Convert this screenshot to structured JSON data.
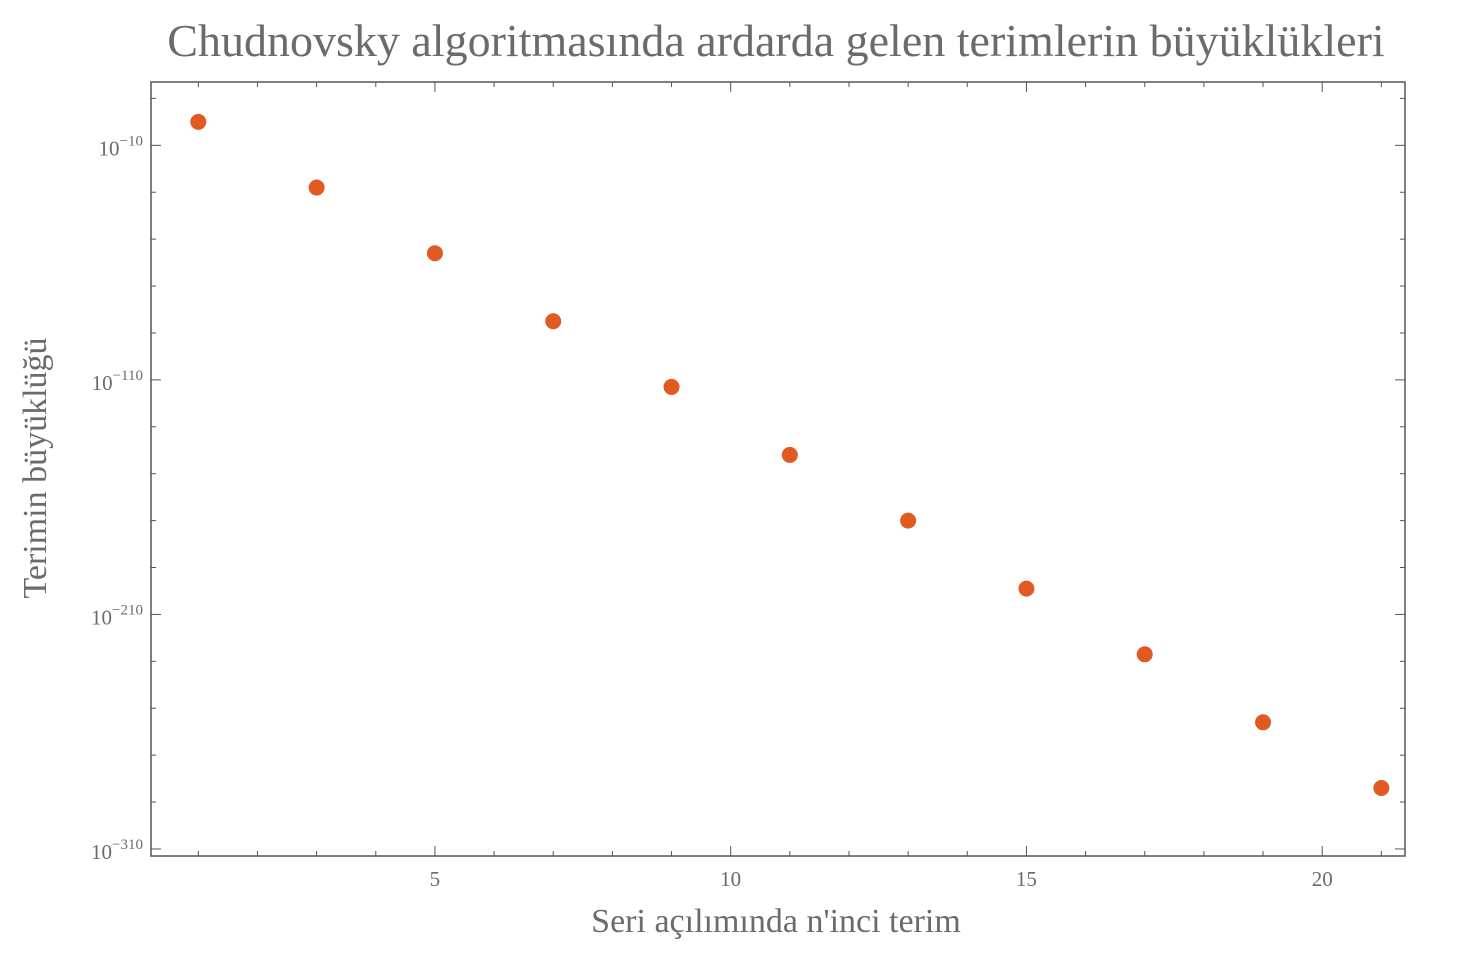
{
  "chart_data": {
    "type": "scatter",
    "title": "Chudnovsky algoritmasında ardarda gelen terimlerin büyüklükleri",
    "xlabel": "Seri açılımında n'inci terim",
    "ylabel": "Terimin büyüklüğü",
    "y_scale": "log10",
    "xlim": [
      0.2,
      21.4
    ],
    "ylim_exponent": [
      -313,
      17
    ],
    "x_ticks": [
      {
        "value": 5,
        "label": "5"
      },
      {
        "value": 10,
        "label": "10"
      },
      {
        "value": 15,
        "label": "15"
      },
      {
        "value": 20,
        "label": "20"
      }
    ],
    "y_ticks": [
      {
        "exponent": -10,
        "base": "10",
        "sup": "−10"
      },
      {
        "exponent": -110,
        "base": "10",
        "sup": "−110"
      },
      {
        "exponent": -210,
        "base": "10",
        "sup": "−210"
      },
      {
        "exponent": -310,
        "base": "10",
        "sup": "−310"
      }
    ],
    "grid": false,
    "series": [
      {
        "color": "#e05a22",
        "points": [
          {
            "x": 1,
            "log10_y": 0
          },
          {
            "x": 3,
            "log10_y": -28
          },
          {
            "x": 5,
            "log10_y": -56
          },
          {
            "x": 7,
            "log10_y": -85
          },
          {
            "x": 9,
            "log10_y": -113
          },
          {
            "x": 11,
            "log10_y": -142
          },
          {
            "x": 13,
            "log10_y": -170
          },
          {
            "x": 15,
            "log10_y": -199
          },
          {
            "x": 17,
            "log10_y": -227
          },
          {
            "x": 19,
            "log10_y": -256
          },
          {
            "x": 21,
            "log10_y": -284
          }
        ]
      }
    ],
    "colors": {
      "frame": "#555555",
      "text": "#6b6b6b",
      "marker": "#e05a22"
    }
  }
}
